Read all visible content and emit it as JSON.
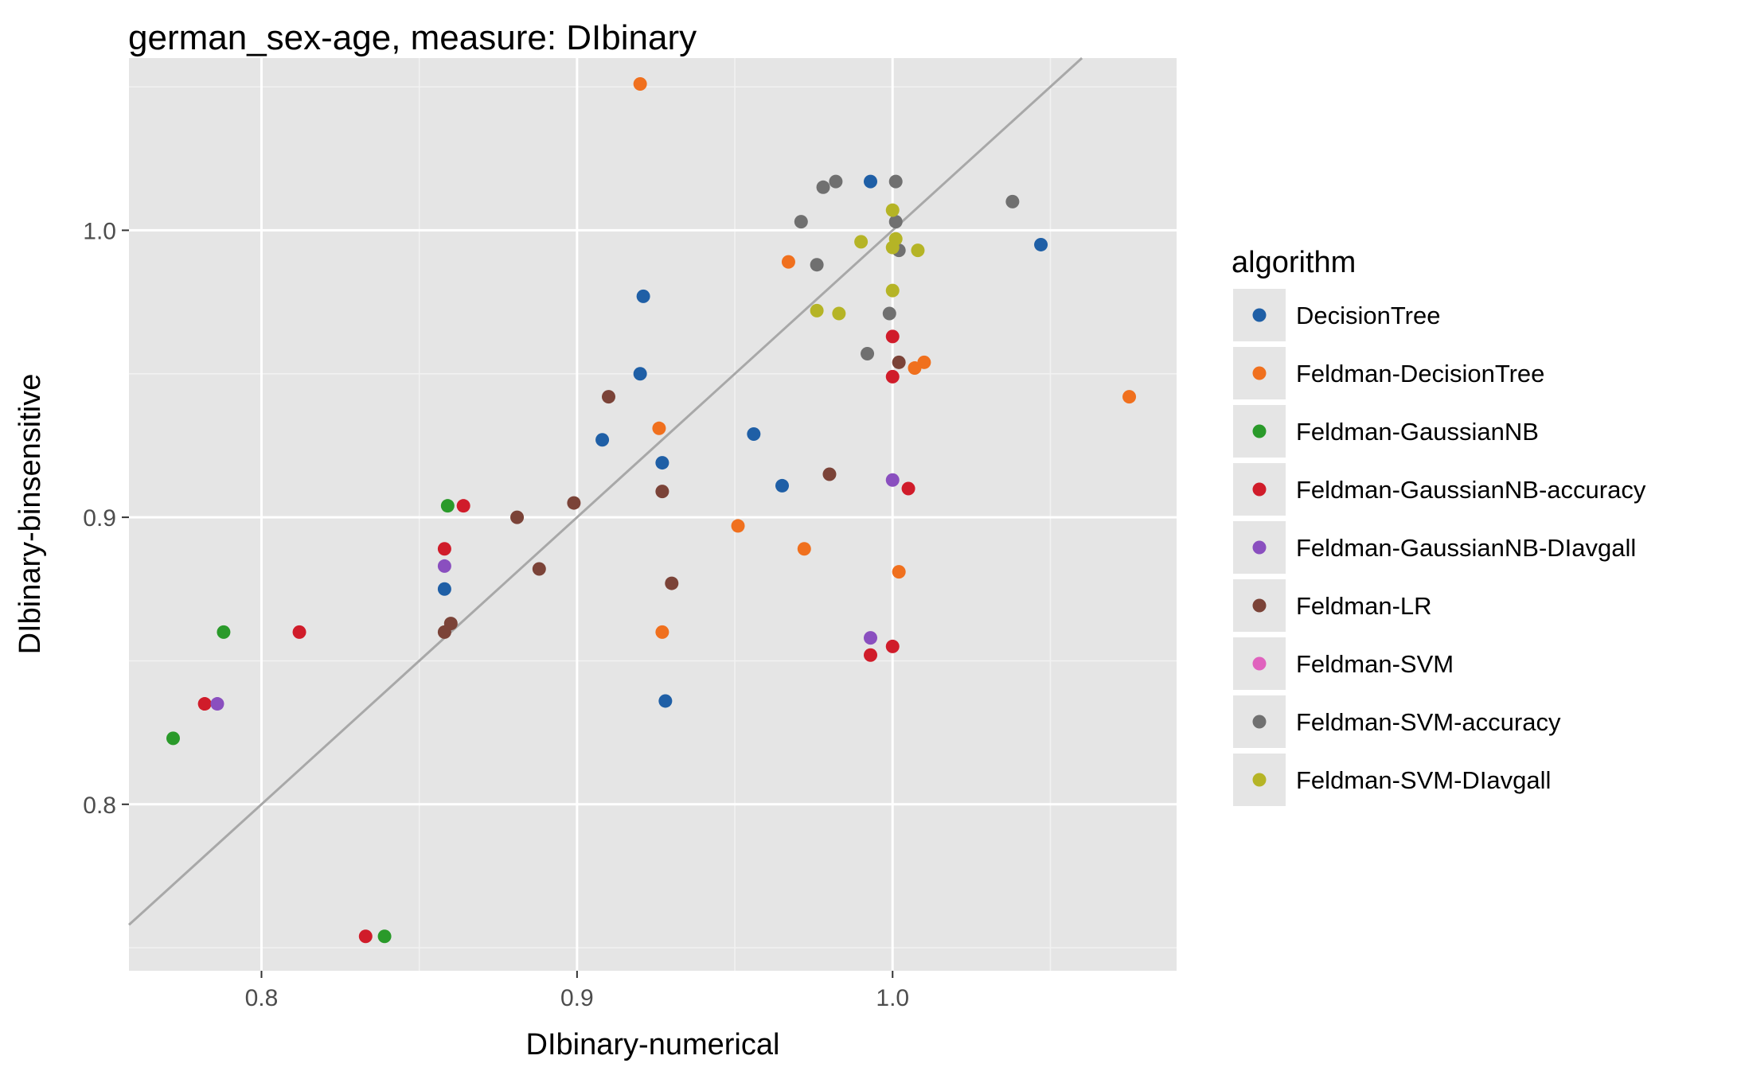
{
  "chart_data": {
    "type": "scatter",
    "title": "german_sex-age, measure: DIbinary",
    "xlabel": "DIbinary-numerical",
    "ylabel": "DIbinary-binsensitive",
    "xlim": [
      0.758,
      1.09
    ],
    "ylim": [
      0.742,
      1.06
    ],
    "x_ticks": [
      0.8,
      0.9,
      1.0
    ],
    "x_tick_labels": [
      "0.8",
      "0.9",
      "1.0"
    ],
    "y_ticks": [
      0.8,
      0.9,
      1.0
    ],
    "y_tick_labels": [
      "0.8",
      "0.9",
      "1.0"
    ],
    "grid": true,
    "reference_line": "y = x",
    "legend_title": "algorithm",
    "legend_position": "right",
    "series": [
      {
        "name": "DecisionTree",
        "color": "#1f5fa6",
        "points": [
          [
            0.993,
            1.017
          ],
          [
            1.047,
            0.995
          ],
          [
            0.921,
            0.977
          ],
          [
            0.92,
            0.95
          ],
          [
            0.956,
            0.929
          ],
          [
            0.908,
            0.927
          ],
          [
            0.927,
            0.919
          ],
          [
            0.965,
            0.911
          ],
          [
            0.858,
            0.875
          ],
          [
            0.928,
            0.836
          ]
        ]
      },
      {
        "name": "Feldman-DecisionTree",
        "color": "#f0701e",
        "points": [
          [
            0.92,
            1.051
          ],
          [
            0.967,
            0.989
          ],
          [
            1.007,
            0.952
          ],
          [
            1.01,
            0.954
          ],
          [
            1.075,
            0.942
          ],
          [
            0.926,
            0.931
          ],
          [
            0.951,
            0.897
          ],
          [
            0.972,
            0.889
          ],
          [
            1.002,
            0.881
          ],
          [
            0.927,
            0.86
          ]
        ]
      },
      {
        "name": "Feldman-GaussianNB",
        "color": "#2a9a2a",
        "points": [
          [
            0.859,
            0.904
          ],
          [
            0.788,
            0.86
          ],
          [
            0.772,
            0.823
          ],
          [
            0.839,
            0.754
          ]
        ]
      },
      {
        "name": "Feldman-GaussianNB-accuracy",
        "color": "#d01c2a",
        "points": [
          [
            1.0,
            0.963
          ],
          [
            1.0,
            0.949
          ],
          [
            1.005,
            0.91
          ],
          [
            0.864,
            0.904
          ],
          [
            0.858,
            0.889
          ],
          [
            0.812,
            0.86
          ],
          [
            0.782,
            0.835
          ],
          [
            1.0,
            0.855
          ],
          [
            0.993,
            0.852
          ],
          [
            0.833,
            0.754
          ]
        ]
      },
      {
        "name": "Feldman-GaussianNB-DIavgall",
        "color": "#8a4fbf",
        "points": [
          [
            1.0,
            0.913
          ],
          [
            0.858,
            0.883
          ],
          [
            0.993,
            0.858
          ],
          [
            0.786,
            0.835
          ]
        ]
      },
      {
        "name": "Feldman-LR",
        "color": "#7b4338",
        "points": [
          [
            1.002,
            0.954
          ],
          [
            0.91,
            0.942
          ],
          [
            0.98,
            0.915
          ],
          [
            0.927,
            0.909
          ],
          [
            0.899,
            0.905
          ],
          [
            0.881,
            0.9
          ],
          [
            0.888,
            0.882
          ],
          [
            0.93,
            0.877
          ],
          [
            0.86,
            0.863
          ],
          [
            0.858,
            0.86
          ]
        ]
      },
      {
        "name": "Feldman-SVM",
        "color": "#e062be",
        "points": []
      },
      {
        "name": "Feldman-SVM-accuracy",
        "color": "#707070",
        "points": [
          [
            0.982,
            1.017
          ],
          [
            0.978,
            1.015
          ],
          [
            1.001,
            1.017
          ],
          [
            1.038,
            1.01
          ],
          [
            0.971,
            1.003
          ],
          [
            1.001,
            1.003
          ],
          [
            1.002,
            0.993
          ],
          [
            0.976,
            0.988
          ],
          [
            0.999,
            0.971
          ],
          [
            0.992,
            0.957
          ]
        ]
      },
      {
        "name": "Feldman-SVM-DIavgall",
        "color": "#b5b426",
        "points": [
          [
            1.0,
            1.007
          ],
          [
            0.99,
            0.996
          ],
          [
            1.001,
            0.997
          ],
          [
            1.0,
            0.994
          ],
          [
            1.008,
            0.993
          ],
          [
            1.0,
            0.979
          ],
          [
            0.976,
            0.972
          ],
          [
            0.983,
            0.971
          ]
        ]
      }
    ]
  }
}
